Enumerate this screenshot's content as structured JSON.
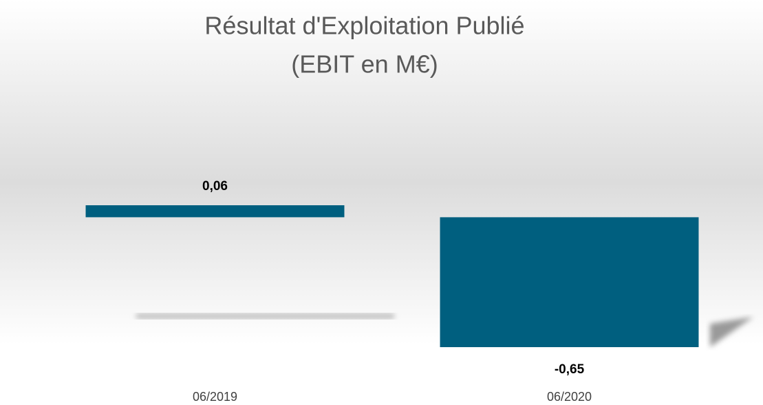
{
  "chart_data": {
    "type": "bar",
    "title": "Résultat d'Exploitation Publié",
    "subtitle": "(EBIT en M€)",
    "categories": [
      "06/2019",
      "06/2020"
    ],
    "values": [
      0.06,
      -0.65
    ],
    "value_labels": [
      "0,06",
      "-0,65"
    ],
    "color": "#005f7f"
  }
}
